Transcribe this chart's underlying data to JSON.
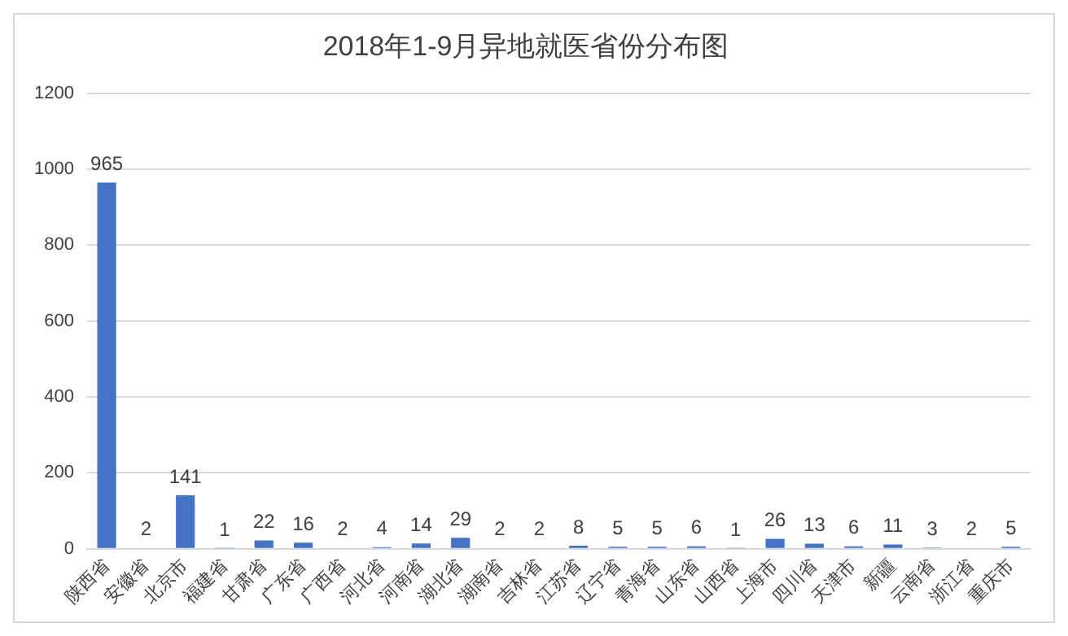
{
  "chart_data": {
    "type": "bar",
    "title": "2018年1-9月异地就医省份分布图",
    "categories": [
      "陕西省",
      "安徽省",
      "北京市",
      "福建省",
      "甘肃省",
      "广东省",
      "广西省",
      "河北省",
      "河南省",
      "湖北省",
      "湖南省",
      "吉林省",
      "江苏省",
      "辽宁省",
      "青海省",
      "山东省",
      "山西省",
      "上海市",
      "四川省",
      "天津市",
      "新疆",
      "云南省",
      "浙江省",
      "重庆市"
    ],
    "values": [
      965,
      2,
      141,
      1,
      22,
      16,
      2,
      4,
      14,
      29,
      2,
      2,
      8,
      5,
      5,
      6,
      1,
      26,
      13,
      6,
      11,
      3,
      2,
      5
    ],
    "color": "#4472c4",
    "ylim": [
      0,
      1200
    ],
    "yticks": [
      0,
      200,
      400,
      600,
      800,
      1000,
      1200
    ],
    "grid": "y",
    "data_labels": true,
    "legend": false
  }
}
